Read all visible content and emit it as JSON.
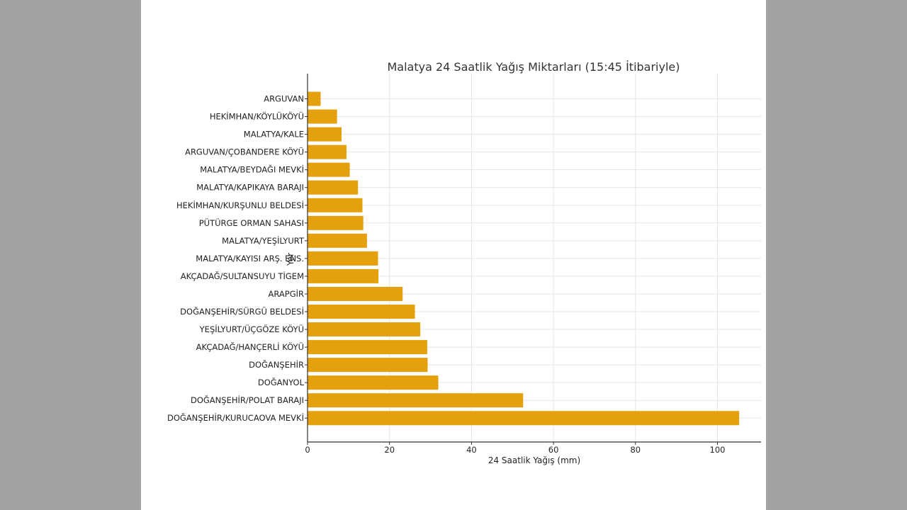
{
  "colors": {
    "page_background": "#a3a3a3",
    "panel_background": "#ffffff",
    "bar": "#e5a00d",
    "grid": "#e6e6e6",
    "axis": "#333333"
  },
  "chart_data": {
    "type": "bar",
    "orientation": "horizontal",
    "title": "Malatya 24 Saatlik Yağış Miktarları (15:45 İtibariyle)",
    "xlabel": "24 Saatlik Yağış (mm)",
    "ylabel": "Yer",
    "xlim": [
      0,
      110
    ],
    "xticks": [
      0,
      20,
      40,
      60,
      80,
      100
    ],
    "grid": true,
    "categories": [
      "ARGUVAN",
      "HEKİMHAN/KÖYLÜKÖYÜ",
      "MALATYA/KALE",
      "ARGUVAN/ÇOBANDERE KÖYÜ",
      "MALATYA/BEYDAĞI MEVKİ",
      "MALATYA/KAPIKAYA BARAJI",
      "HEKİMHAN/KURŞUNLU BELDESİ",
      "PÜTÜRGE ORMAN SAHASI",
      "MALATYA/YEŞİLYURT",
      "MALATYA/KAYISI ARŞ. ENS.",
      "AKÇADAĞ/SULTANSUYU TİGEM",
      "ARAPGİR",
      "DOĞANŞEHİR/SÜRGÜ BELDESİ",
      "YEŞİLYURT/ÜÇGÖZE KÖYÜ",
      "AKÇADAĞ/HANÇERLİ KÖYÜ",
      "DOĞANŞEHİR",
      "DOĞANYOL",
      "DOĞANŞEHİR/POLAT BARAJI",
      "DOĞANŞEHİR/KURUCAOVA MEVKİ"
    ],
    "values": [
      3.2,
      7.2,
      8.3,
      9.5,
      10.3,
      12.3,
      13.4,
      13.6,
      14.5,
      17.2,
      17.3,
      23.2,
      26.2,
      27.5,
      29.2,
      29.3,
      31.9,
      52.6,
      105.3
    ]
  }
}
